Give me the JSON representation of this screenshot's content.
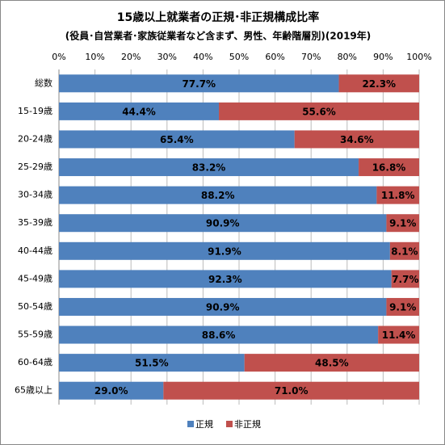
{
  "chart_data": {
    "type": "stacked-barh",
    "title": "15歳以上就業者の正規･非正規構成比率",
    "subtitle": "(役員･自営業者･家族従業者など含まず、男性、年齢階層別)(2019年)",
    "categories": [
      "総数",
      "15-19歳",
      "20-24歳",
      "25-29歳",
      "30-34歳",
      "35-39歳",
      "40-44歳",
      "45-49歳",
      "50-54歳",
      "55-59歳",
      "60-64歳",
      "65歳以上"
    ],
    "series": [
      {
        "name": "正規",
        "color": "#4f81bd",
        "values": [
          77.7,
          44.4,
          65.4,
          83.2,
          88.2,
          90.9,
          91.9,
          92.3,
          90.9,
          88.6,
          51.5,
          29.0
        ],
        "value_labels": [
          "77.7%",
          "44.4%",
          "65.4%",
          "83.2%",
          "88.2%",
          "90.9%",
          "91.9%",
          "92.3%",
          "90.9%",
          "88.6%",
          "51.5%",
          "29.0%"
        ]
      },
      {
        "name": "非正規",
        "color": "#c0504d",
        "values": [
          22.3,
          55.6,
          34.6,
          16.8,
          11.8,
          9.1,
          8.1,
          7.7,
          9.1,
          11.4,
          48.5,
          71.0
        ],
        "value_labels": [
          "22.3%",
          "55.6%",
          "34.6%",
          "16.8%",
          "11.8%",
          "9.1%",
          "8.1%",
          "7.7%",
          "9.1%",
          "11.4%",
          "48.5%",
          "71.0%"
        ]
      }
    ],
    "xlim": [
      0,
      100
    ],
    "xticks": [
      {
        "value": 0,
        "label": "0%"
      },
      {
        "value": 10,
        "label": "10%"
      },
      {
        "value": 20,
        "label": "20%"
      },
      {
        "value": 30,
        "label": "30%"
      },
      {
        "value": 40,
        "label": "40%"
      },
      {
        "value": 50,
        "label": "50%"
      },
      {
        "value": 60,
        "label": "60%"
      },
      {
        "value": 70,
        "label": "70%"
      },
      {
        "value": 80,
        "label": "80%"
      },
      {
        "value": 90,
        "label": "90%"
      },
      {
        "value": 100,
        "label": "100%"
      }
    ],
    "grid": true
  }
}
